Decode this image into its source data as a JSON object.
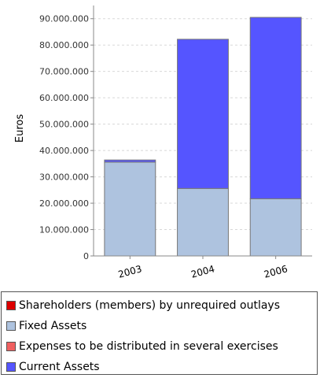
{
  "chart_data": {
    "type": "bar",
    "stacked": true,
    "categories": [
      "2003",
      "2004",
      "2006"
    ],
    "series": [
      {
        "name": "Shareholders (members) by unrequired outlays",
        "values": [
          0,
          0,
          0
        ],
        "color": "#dd0000"
      },
      {
        "name": "Fixed Assets",
        "values": [
          35600000,
          25600000,
          21700000
        ],
        "color": "#aec3df"
      },
      {
        "name": "Expenses to be distributed in several exercises",
        "values": [
          0,
          0,
          0
        ],
        "color": "#f06060"
      },
      {
        "name": "Current Assets",
        "values": [
          800000,
          56600000,
          68800000
        ],
        "color": "#5555ff"
      }
    ],
    "ylabel": "Euros",
    "xlabel": "",
    "ylim": [
      0,
      95000000
    ],
    "yticks": [
      "0",
      "10.000.000",
      "20.000.000",
      "30.000.000",
      "40.000.000",
      "50.000.000",
      "60.000.000",
      "70.000.000",
      "80.000.000",
      "90.000.000"
    ],
    "ytick_values": [
      0,
      10000000,
      20000000,
      30000000,
      40000000,
      50000000,
      60000000,
      70000000,
      80000000,
      90000000
    ],
    "grid": true,
    "legend_position": "bottom"
  }
}
